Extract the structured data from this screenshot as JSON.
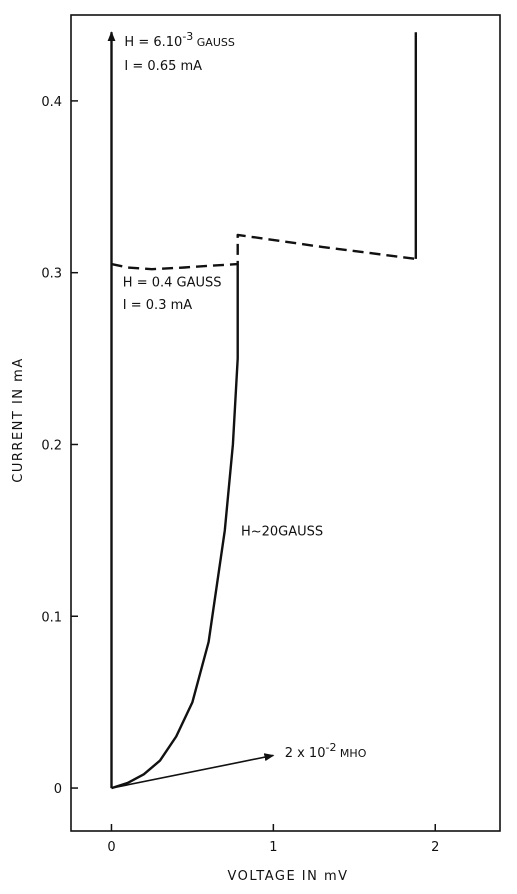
{
  "chart_data": {
    "type": "line",
    "xlabel": "VOLTAGE IN mV",
    "ylabel": "CURRENT IN mA",
    "xlim": [
      -0.25,
      2.4
    ],
    "ylim": [
      -0.025,
      0.45
    ],
    "x_ticks": [
      "0",
      "1",
      "2"
    ],
    "y_ticks": [
      "0",
      "0.1",
      "0.2",
      "0.3",
      "0.4"
    ],
    "colors": {
      "curve": "#111111"
    },
    "series": [
      {
        "name": "H = 6.10^-3 GAUSS",
        "style": "solid",
        "points": [
          [
            0,
            0
          ],
          [
            0,
            0.44
          ]
        ]
      },
      {
        "name": "H = 0.4 GAUSS",
        "style": "dashed",
        "points": [
          [
            0,
            0.305
          ],
          [
            0.1,
            0.303
          ],
          [
            0.25,
            0.302
          ],
          [
            0.45,
            0.303
          ],
          [
            0.6,
            0.304
          ],
          [
            0.78,
            0.305
          ],
          [
            0.78,
            0.322
          ],
          [
            1.3,
            0.315
          ],
          [
            1.88,
            0.308
          ]
        ]
      },
      {
        "name": "H = 0.4 GAUSS vertical",
        "style": "solid",
        "points": [
          [
            1.88,
            0.308
          ],
          [
            1.88,
            0.44
          ]
        ]
      },
      {
        "name": "H~20 GAUSS",
        "style": "solid",
        "points": [
          [
            0,
            0
          ],
          [
            0.1,
            0.003
          ],
          [
            0.2,
            0.008
          ],
          [
            0.3,
            0.016
          ],
          [
            0.4,
            0.03
          ],
          [
            0.5,
            0.05
          ],
          [
            0.6,
            0.085
          ],
          [
            0.7,
            0.15
          ],
          [
            0.75,
            0.2
          ],
          [
            0.78,
            0.25
          ],
          [
            0.78,
            0.305
          ]
        ]
      },
      {
        "name": "2x10^-2 MHO",
        "style": "arrow",
        "points": [
          [
            0,
            0
          ],
          [
            1,
            0.019
          ]
        ]
      }
    ],
    "annotations": [
      {
        "id": "ann_h1",
        "text": "H = 6.10",
        "sup": "-3",
        "tail": " GAUSS",
        "x": 0.08,
        "y": 0.432
      },
      {
        "id": "ann_i1",
        "text": "I = 0.65 mA",
        "x": 0.08,
        "y": 0.418
      },
      {
        "id": "ann_h2",
        "text": "H = 0.4 GAUSS",
        "x": 0.07,
        "y": 0.292
      },
      {
        "id": "ann_i2",
        "text": "I = 0.3 mA",
        "x": 0.07,
        "y": 0.279
      },
      {
        "id": "ann_h3",
        "text": "H~20GAUSS",
        "x": 0.8,
        "y": 0.147
      },
      {
        "id": "ann_mho",
        "text": "2 x 10",
        "sup": "-2",
        "tail": " MHO",
        "x": 1.07,
        "y": 0.018
      }
    ]
  }
}
